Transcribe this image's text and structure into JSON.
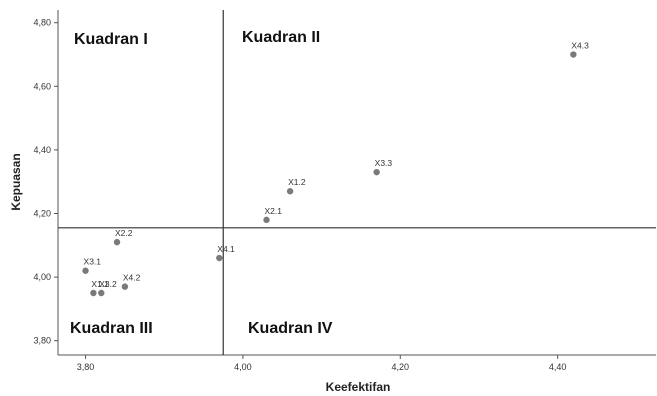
{
  "chart_data": {
    "type": "scatter",
    "xlabel": "Keefektifan",
    "ylabel": "Kepuasan",
    "xlim": [
      3.765,
      4.525
    ],
    "ylim": [
      3.755,
      4.84
    ],
    "x_ticks": [
      "3,80",
      "4,00",
      "4,20",
      "4,40"
    ],
    "y_ticks": [
      "3,80",
      "4,00",
      "4,20",
      "4,40",
      "4,60",
      "4,80"
    ],
    "grid": false,
    "legend": "none",
    "divider_x": 3.975,
    "divider_y": 4.155,
    "points": [
      {
        "label": "X1.1",
        "x": 3.81,
        "y": 3.95
      },
      {
        "label": "X1.2",
        "x": 4.06,
        "y": 4.27
      },
      {
        "label": "X2.1",
        "x": 4.03,
        "y": 4.18
      },
      {
        "label": "X2.2",
        "x": 3.84,
        "y": 4.11
      },
      {
        "label": "X3.1",
        "x": 3.8,
        "y": 4.02
      },
      {
        "label": "X3.2",
        "x": 3.82,
        "y": 3.95
      },
      {
        "label": "X3.3",
        "x": 4.17,
        "y": 4.33
      },
      {
        "label": "X4.1",
        "x": 3.97,
        "y": 4.06
      },
      {
        "label": "X4.2",
        "x": 3.85,
        "y": 3.97
      },
      {
        "label": "X4.3",
        "x": 4.42,
        "y": 4.7
      }
    ],
    "quadrants": {
      "q1": "Kuadran I",
      "q2": "Kuadran II",
      "q3": "Kuadran III",
      "q4": "Kuadran IV"
    },
    "colors": {
      "point": "#7a7a7a",
      "line": "#333333",
      "axis": "#555555"
    }
  }
}
